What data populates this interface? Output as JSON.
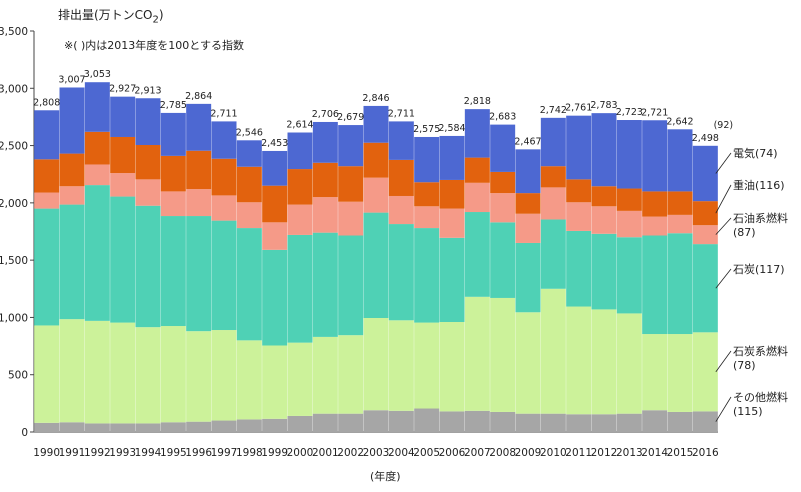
{
  "chart_data": {
    "type": "bar",
    "stacked": true,
    "unit_label": "排出量(万トンCO",
    "unit_sub": "2",
    "unit_close": ")",
    "note": "※(  )内は2013年度を100とする指数",
    "xlabel": "(年度)",
    "ylim": [
      0,
      3500
    ],
    "yticks": [
      0,
      500,
      1000,
      1500,
      2000,
      2500,
      3000,
      3500
    ],
    "ytick_labels": [
      "0",
      "500",
      "1,000",
      "1,500",
      "2,000",
      "2,500",
      "3,000",
      "3,500"
    ],
    "grid": false,
    "categories": [
      "1990",
      "1991",
      "1992",
      "1993",
      "1994",
      "1995",
      "1996",
      "1997",
      "1998",
      "1999",
      "2000",
      "2001",
      "2002",
      "2003",
      "2004",
      "2005",
      "2006",
      "2007",
      "2008",
      "2009",
      "2010",
      "2011",
      "2012",
      "2013",
      "2014",
      "2015",
      "2016"
    ],
    "totals": [
      "2,808",
      "3,007",
      "3,053",
      "2,927",
      "2,913",
      "2,785",
      "2,864",
      "2,711",
      "2,546",
      "2,453",
      "2,614",
      "2,706",
      "2,679",
      "2,846",
      "2,711",
      "2,575",
      "2,584",
      "2,818",
      "2,683",
      "2,467",
      "2,742",
      "2,761",
      "2,783",
      "2,723",
      "2,721",
      "2,642",
      "2,498"
    ],
    "total_index_2016": "(92)",
    "series": [
      {
        "name": "その他燃料",
        "index": "(115)",
        "color": "#a6a6a6",
        "values": [
          80,
          85,
          75,
          75,
          75,
          85,
          90,
          100,
          110,
          115,
          140,
          160,
          160,
          190,
          185,
          205,
          180,
          185,
          175,
          160,
          160,
          155,
          155,
          160,
          190,
          175,
          180
        ]
      },
      {
        "name": "石炭系燃料",
        "index": "(78)",
        "color": "#ccf29a",
        "values": [
          850,
          900,
          895,
          880,
          840,
          840,
          790,
          790,
          690,
          640,
          640,
          670,
          685,
          805,
          790,
          750,
          780,
          995,
          995,
          885,
          1090,
          940,
          915,
          875,
          665,
          680,
          690
        ]
      },
      {
        "name": "石炭",
        "index": "(117)",
        "color": "#4fd1b5",
        "values": [
          1020,
          1000,
          1185,
          1100,
          1060,
          960,
          1005,
          955,
          980,
          835,
          940,
          910,
          870,
          920,
          840,
          825,
          735,
          740,
          660,
          605,
          605,
          660,
          660,
          665,
          860,
          880,
          770
        ]
      },
      {
        "name": "石油系燃料",
        "index": "(87)",
        "color": "#f59a88",
        "values": [
          140,
          160,
          180,
          205,
          230,
          215,
          235,
          220,
          225,
          240,
          265,
          310,
          295,
          305,
          245,
          190,
          255,
          255,
          255,
          255,
          280,
          250,
          240,
          230,
          165,
          160,
          165
        ]
      },
      {
        "name": "重油",
        "index": "(116)",
        "color": "#e2620e",
        "values": [
          290,
          285,
          285,
          315,
          300,
          310,
          335,
          320,
          310,
          320,
          310,
          300,
          310,
          305,
          315,
          210,
          250,
          220,
          185,
          180,
          185,
          200,
          175,
          195,
          220,
          205,
          210
        ]
      },
      {
        "name": "電気",
        "index": "(74)",
        "color": "#4d68d2",
        "values": [
          428,
          577,
          433,
          352,
          408,
          375,
          409,
          326,
          231,
          303,
          319,
          356,
          359,
          321,
          336,
          395,
          384,
          423,
          413,
          382,
          422,
          556,
          638,
          598,
          621,
          542,
          483
        ]
      }
    ],
    "legend_order_top_to_bottom": [
      "電気",
      "重油",
      "石油系燃料",
      "石炭",
      "石炭系燃料",
      "その他燃料"
    ]
  }
}
